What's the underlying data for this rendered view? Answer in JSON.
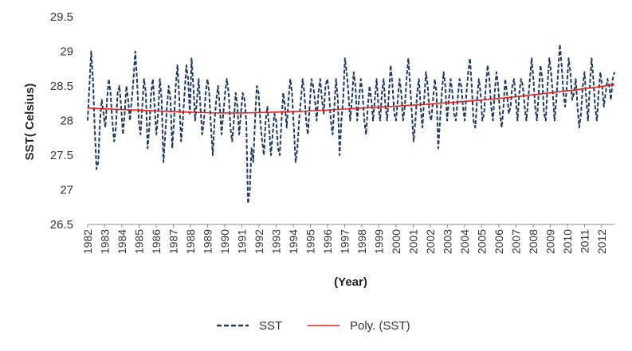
{
  "chart_data": {
    "type": "line",
    "title": "",
    "xlabel": "(Year)",
    "ylabel": "SST( Celsius)",
    "ylim": [
      26.5,
      29.5
    ],
    "y_ticks": [
      26.5,
      27,
      27.5,
      28,
      28.5,
      29,
      29.5
    ],
    "y_tick_labels": [
      "26.5",
      "27",
      "27.5",
      "28",
      "28.5",
      "29",
      "29.5"
    ],
    "x_range": [
      1982,
      2012.75
    ],
    "x_tick_labels": [
      "1982",
      "1983",
      "1984",
      "1985",
      "1986",
      "1987",
      "1988",
      "1989",
      "1990",
      "1991",
      "1992",
      "1993",
      "1994",
      "1995",
      "1996",
      "1997",
      "1998",
      "1999",
      "2000",
      "2001",
      "2002",
      "2003",
      "2004",
      "2005",
      "2006",
      "2007",
      "2008",
      "2009",
      "2010",
      "2011",
      "2012"
    ],
    "grid": false,
    "legend_position": "bottom",
    "series": [
      {
        "name": "SST",
        "style": "dashed",
        "color": "#1f3864",
        "values": [
          28.0,
          28.5,
          29.0,
          28.6,
          27.9,
          27.3,
          27.4,
          28.0,
          28.3,
          28.1,
          27.9,
          28.3,
          28.6,
          28.4,
          28.0,
          27.7,
          27.9,
          28.4,
          28.5,
          28.2,
          27.8,
          28.1,
          28.5,
          28.3,
          28.0,
          28.3,
          28.6,
          29.0,
          28.6,
          28.0,
          27.8,
          28.2,
          28.6,
          28.4,
          27.6,
          27.9,
          28.4,
          28.6,
          28.2,
          27.8,
          28.1,
          28.6,
          28.3,
          27.4,
          27.8,
          28.2,
          28.5,
          28.3,
          27.6,
          28.0,
          28.5,
          28.8,
          28.3,
          27.7,
          28.0,
          28.4,
          28.8,
          28.6,
          28.1,
          28.9,
          28.5,
          28.0,
          28.3,
          28.6,
          28.2,
          27.8,
          28.0,
          28.4,
          28.6,
          28.4,
          27.9,
          27.5,
          28.0,
          28.3,
          28.5,
          28.2,
          27.8,
          28.1,
          28.4,
          28.6,
          28.4,
          27.9,
          27.7,
          28.0,
          28.4,
          28.2,
          27.8,
          28.1,
          28.4,
          28.3,
          28.0,
          26.8,
          27.0,
          27.6,
          27.4,
          28.0,
          28.5,
          28.4,
          28.0,
          27.7,
          27.5,
          28.0,
          28.2,
          27.9,
          27.5,
          27.8,
          28.1,
          28.0,
          27.6,
          27.5,
          28.0,
          28.4,
          28.2,
          27.9,
          28.3,
          28.6,
          28.4,
          27.9,
          27.4,
          27.6,
          28.0,
          28.3,
          28.6,
          28.4,
          28.0,
          27.8,
          28.2,
          28.6,
          28.5,
          28.3,
          28.0,
          28.4,
          28.6,
          28.3,
          28.1,
          28.5,
          28.6,
          28.4,
          28.0,
          27.8,
          28.2,
          28.6,
          28.3,
          27.5,
          28.0,
          28.3,
          28.9,
          28.7,
          28.4,
          28.0,
          28.3,
          28.7,
          28.5,
          28.0,
          28.3,
          28.6,
          28.4,
          28.0,
          27.8,
          28.2,
          28.5,
          28.3,
          28.0,
          28.3,
          28.6,
          28.2,
          28.0,
          28.4,
          28.6,
          28.2,
          28.0,
          28.4,
          28.8,
          28.5,
          28.1,
          28.0,
          28.3,
          28.6,
          28.4,
          28.0,
          28.2,
          28.6,
          28.9,
          28.5,
          28.1,
          27.7,
          28.0,
          28.4,
          28.6,
          28.2,
          27.9,
          28.3,
          28.7,
          28.5,
          28.1,
          28.0,
          28.3,
          28.6,
          28.4,
          27.6,
          28.0,
          28.4,
          28.7,
          28.5,
          28.0,
          28.3,
          28.6,
          28.4,
          28.1,
          28.0,
          28.3,
          28.6,
          28.5,
          28.2,
          28.0,
          28.4,
          28.7,
          28.9,
          28.5,
          28.0,
          27.9,
          28.3,
          28.6,
          28.4,
          28.0,
          28.1,
          28.5,
          28.8,
          28.6,
          28.2,
          28.0,
          28.4,
          28.7,
          28.5,
          28.1,
          27.9,
          28.2,
          28.6,
          28.4,
          28.1,
          28.2,
          28.5,
          28.6,
          28.3,
          28.0,
          28.4,
          28.6,
          28.5,
          28.2,
          28.0,
          28.3,
          28.6,
          28.9,
          28.6,
          28.2,
          28.0,
          28.4,
          28.8,
          28.6,
          28.1,
          28.0,
          28.5,
          28.9,
          28.7,
          28.4,
          28.0,
          28.3,
          28.7,
          29.1,
          28.8,
          28.4,
          28.2,
          28.5,
          28.9,
          28.7,
          28.3,
          28.4,
          28.6,
          28.2,
          27.9,
          28.1,
          28.5,
          28.7,
          28.3,
          28.0,
          28.5,
          28.9,
          28.6,
          28.2,
          28.0,
          28.4,
          28.7,
          28.5,
          28.2,
          28.4,
          28.6,
          28.5,
          28.3,
          28.6,
          28.7
        ]
      },
      {
        "name": "Poly. (SST)",
        "style": "solid",
        "color": "#e8201e",
        "trend_points": [
          [
            1982,
            28.18
          ],
          [
            1986,
            28.14
          ],
          [
            1990,
            28.11
          ],
          [
            1994,
            28.13
          ],
          [
            1998,
            28.18
          ],
          [
            2002,
            28.24
          ],
          [
            2006,
            28.32
          ],
          [
            2010,
            28.43
          ],
          [
            2012.75,
            28.52
          ]
        ]
      }
    ]
  }
}
